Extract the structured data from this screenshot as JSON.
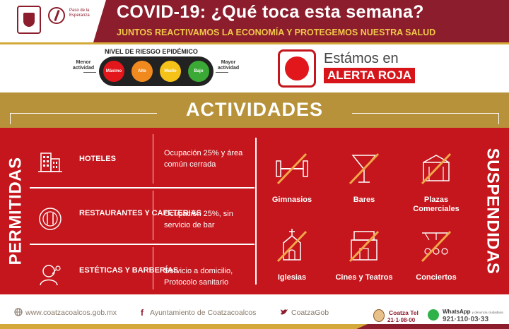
{
  "header": {
    "brand_text": "Paso de la Esperanza",
    "title": "COVID-19: ¿Qué toca esta semana?",
    "subtitle": "JUNTOS REACTIVAMOS LA ECONOMÍA Y PROTEGEMOS NUESTRA SALUD"
  },
  "risk": {
    "title": "NIVEL DE RIESGO EPIDÉMICO",
    "low_label": "Menor actividad",
    "high_label": "Mayor actividad",
    "levels": [
      {
        "label": "Máximo",
        "color": "#e3161c"
      },
      {
        "label": "Alto",
        "color": "#f08a1e"
      },
      {
        "label": "Medio",
        "color": "#f5c21a"
      },
      {
        "label": "Bajo",
        "color": "#3aa935"
      }
    ]
  },
  "alert": {
    "prefix": "Estámos en",
    "label": "ALERTA ROJA",
    "color": "#d7141a"
  },
  "activities_title": "ACTIVIDADES",
  "permitted": {
    "label": "PERMITIDAS",
    "items": [
      {
        "name": "HOTELES",
        "rule": "Ocupación 25% y área común cerrada",
        "icon": "hotel-icon"
      },
      {
        "name": "RESTAURANTES Y CAFETERIAS",
        "rule": "Ocupación 25%, sin servicio de bar",
        "icon": "restaurant-icon"
      },
      {
        "name": "ESTÉTICAS Y BARBERÍAS",
        "rule": "Servicio a domicilio, Protocolo sanitario",
        "icon": "salon-icon"
      }
    ]
  },
  "suspended": {
    "label": "SUSPENDIDAS",
    "items": [
      {
        "name": "Gimnasios",
        "icon": "gym-icon"
      },
      {
        "name": "Bares",
        "icon": "cocktail-icon"
      },
      {
        "name": "Plazas Comerciales",
        "icon": "mall-icon"
      },
      {
        "name": "Iglesias",
        "icon": "church-icon"
      },
      {
        "name": "Cines y Teatros",
        "icon": "cinema-icon"
      },
      {
        "name": "Conciertos",
        "icon": "concert-icon"
      }
    ]
  },
  "footer": {
    "website": "www.coatzacoalcos.gob.mx",
    "facebook": "Ayuntamiento de Coatzacoalcos",
    "twitter": "CoatzaGob",
    "coatza_tel_name": "Coatza Tel",
    "coatza_tel_hours": "21·1·08·00",
    "whatsapp_label": "WhatsApp",
    "whatsapp_note": "y denuncia ciudadana",
    "whatsapp_number": "921·110·03·33"
  },
  "colors": {
    "brand_maroon": "#8c1d2c",
    "panel_red": "#c4161c",
    "gold": "#b8923a"
  }
}
